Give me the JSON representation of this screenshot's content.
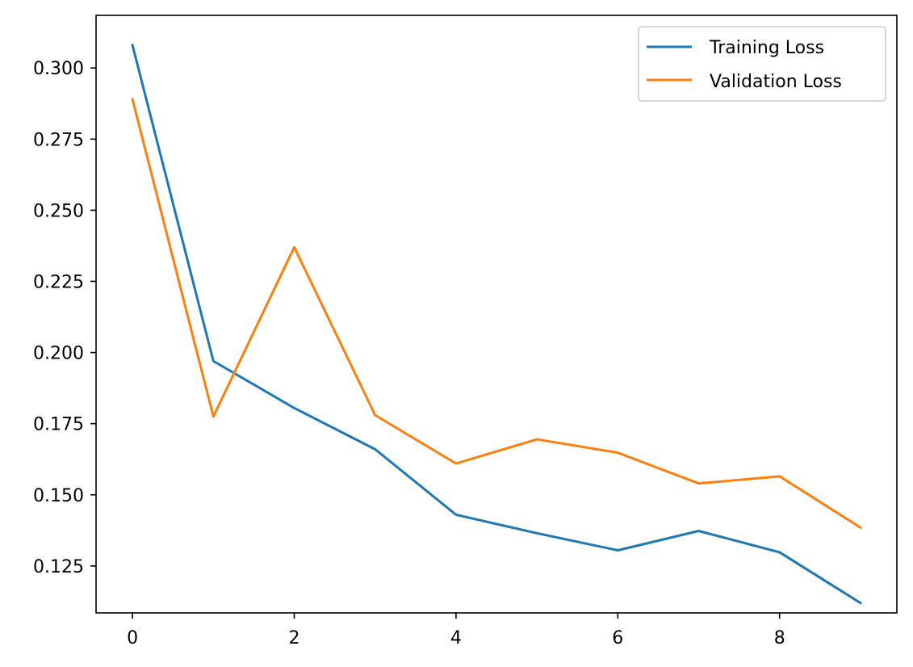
{
  "chart_data": {
    "type": "line",
    "title": "",
    "xlabel": "",
    "ylabel": "",
    "x": [
      0,
      1,
      2,
      3,
      4,
      5,
      6,
      7,
      8,
      9
    ],
    "xlim": [
      -0.45,
      9.45
    ],
    "ylim": [
      0.1085,
      0.3185
    ],
    "x_ticks": [
      0,
      2,
      4,
      6,
      8
    ],
    "x_tick_labels": [
      "0",
      "2",
      "4",
      "6",
      "8"
    ],
    "y_ticks": [
      0.125,
      0.15,
      0.175,
      0.2,
      0.225,
      0.25,
      0.275,
      0.3
    ],
    "y_tick_labels": [
      "0.125",
      "0.150",
      "0.175",
      "0.200",
      "0.225",
      "0.250",
      "0.275",
      "0.300"
    ],
    "grid": false,
    "legend_position": "top-right",
    "series": [
      {
        "name": "Training Loss",
        "color": "#1f77b4",
        "values": [
          0.308,
          0.197,
          0.1805,
          0.166,
          0.143,
          0.1365,
          0.1305,
          0.1373,
          0.1298,
          0.112
        ]
      },
      {
        "name": "Validation Loss",
        "color": "#ff7f0e",
        "values": [
          0.289,
          0.1775,
          0.237,
          0.178,
          0.161,
          0.1695,
          0.1648,
          0.154,
          0.1565,
          0.1385
        ]
      }
    ]
  }
}
